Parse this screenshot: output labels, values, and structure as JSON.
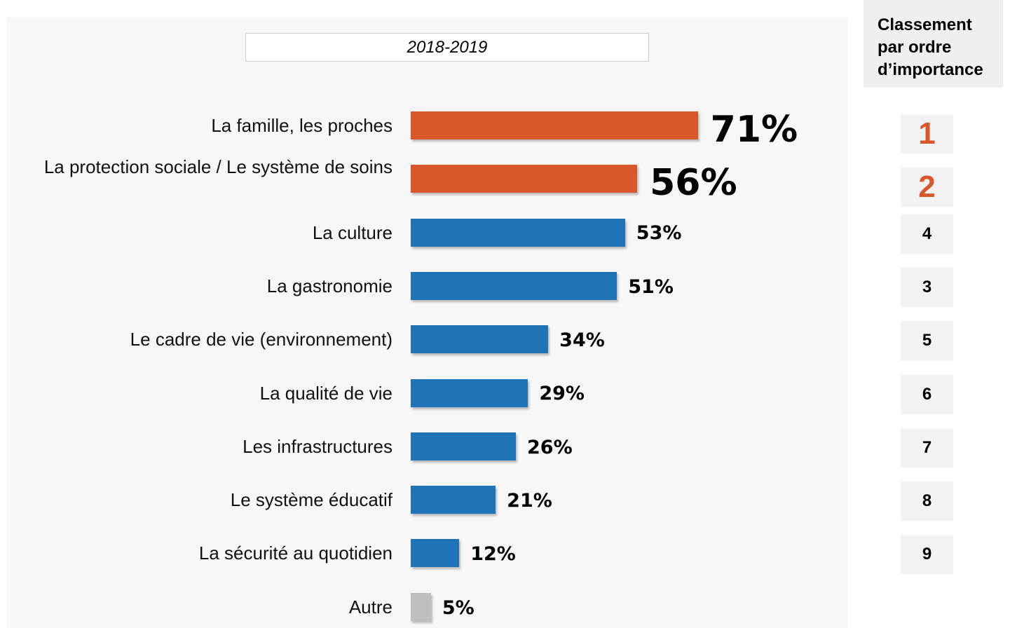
{
  "chart_data": {
    "type": "bar",
    "orientation": "horizontal",
    "title": "2018-2019",
    "categories": [
      "La famille, les proches",
      "La protection sociale / Le système de soins",
      "La culture",
      "La gastronomie",
      "Le cadre de vie (environnement)",
      "La qualité de vie",
      "Les infrastructures",
      "Le système éducatif",
      "La sécurité au quotidien",
      "Autre"
    ],
    "values": [
      71,
      56,
      53,
      51,
      34,
      29,
      26,
      21,
      12,
      5
    ],
    "value_labels": [
      "71%",
      "56%",
      "53%",
      "51%",
      "34%",
      "29%",
      "26%",
      "21%",
      "12%",
      "5%"
    ],
    "colors": [
      "#d9572b",
      "#d9572b",
      "#1f73b7",
      "#1f73b7",
      "#1f73b7",
      "#1f73b7",
      "#1f73b7",
      "#1f73b7",
      "#1f73b7",
      "#bfbfbf"
    ],
    "highlight_color": "#d9572b",
    "ranking": {
      "title": "Classement par ordre d’importance",
      "values": [
        1,
        2,
        4,
        3,
        5,
        6,
        7,
        8,
        9,
        null
      ]
    }
  }
}
